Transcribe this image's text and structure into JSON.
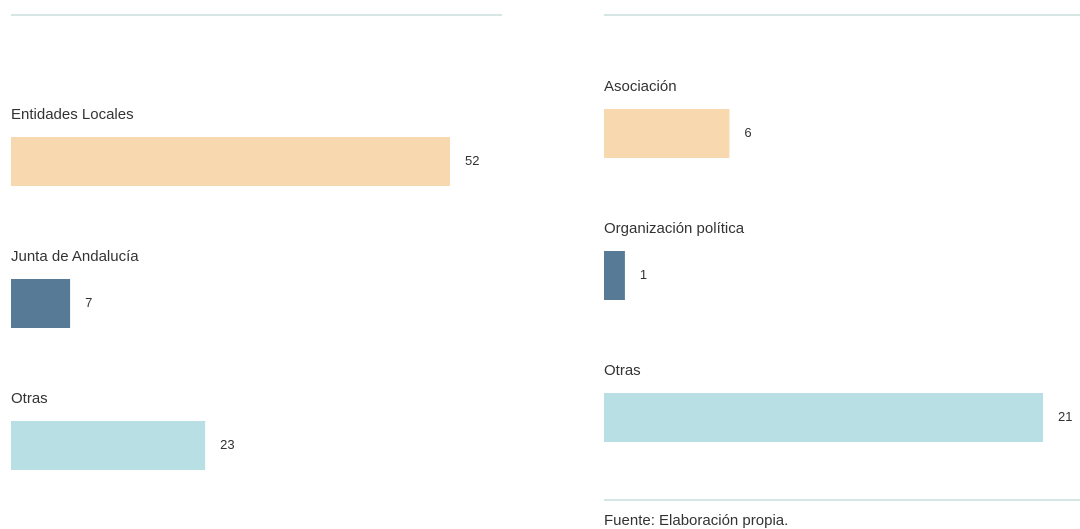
{
  "chart_data": [
    {
      "type": "bar",
      "categories": [
        "Entidades Locales",
        "Junta de Andalucía",
        "Otras"
      ],
      "values": [
        52,
        7,
        23
      ],
      "colors": [
        "#f7d8af",
        "#577b96",
        "#b8dfe3"
      ]
    },
    {
      "type": "bar",
      "categories": [
        "Asociación",
        "Organización política",
        "Otras"
      ],
      "values": [
        6,
        1,
        21
      ],
      "colors": [
        "#f7d8af",
        "#577b96",
        "#b8dfe3"
      ]
    }
  ],
  "source": "Fuente: Elaboración propia."
}
